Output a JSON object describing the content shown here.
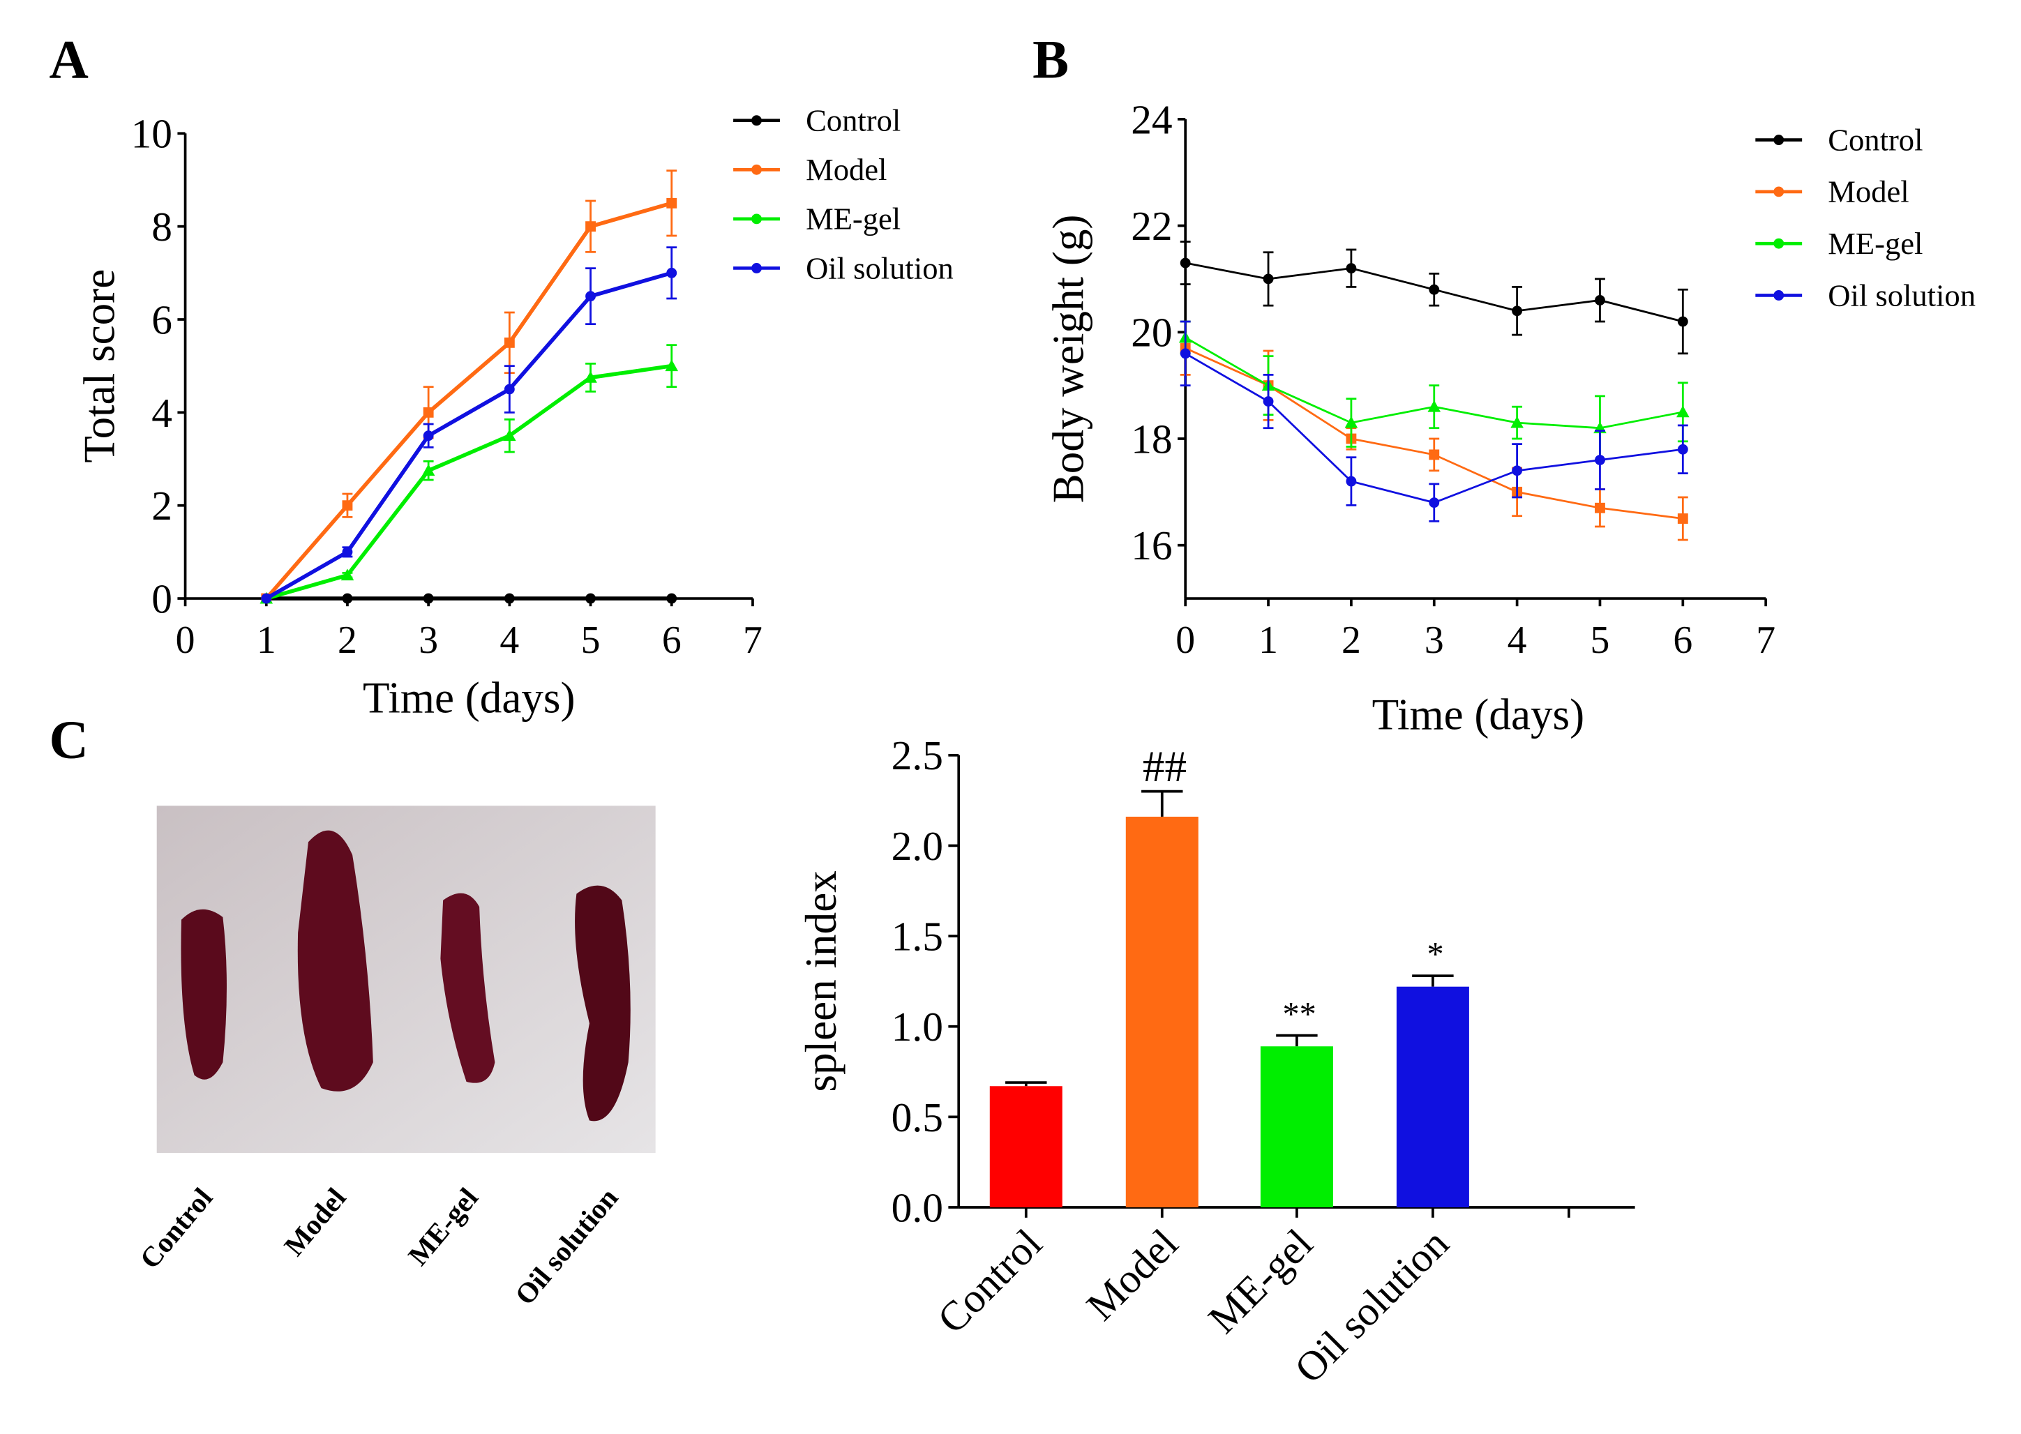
{
  "panel_labels": [
    "A",
    "B",
    "C"
  ],
  "colors": {
    "Control": "#000000",
    "Model": "#ff6a13",
    "ME-gel": "#00ee00",
    "Oil solution": "#1010e0",
    "ControlBar": "#ff0000"
  },
  "chart_data": [
    {
      "id": "A",
      "type": "line",
      "title": "",
      "xlabel": "Time (days)",
      "ylabel": "Total score",
      "xlim": [
        0,
        7
      ],
      "ylim": [
        0,
        10
      ],
      "xticks": [
        "0",
        "1",
        "2",
        "3",
        "4",
        "5",
        "6",
        "7"
      ],
      "yticks": [
        "0",
        "2",
        "4",
        "6",
        "8",
        "10"
      ],
      "legend_position": "top-right",
      "x": [
        1,
        2,
        3,
        4,
        5,
        6
      ],
      "series": [
        {
          "name": "Control",
          "values": [
            0,
            0,
            0,
            0,
            0,
            0
          ],
          "errors": [
            0,
            0,
            0,
            0,
            0,
            0
          ]
        },
        {
          "name": "Model",
          "values": [
            0,
            2,
            4,
            5.5,
            8,
            8.5
          ],
          "errors": [
            0,
            0.25,
            0.55,
            0.65,
            0.55,
            0.7
          ]
        },
        {
          "name": "ME-gel",
          "values": [
            0,
            0.5,
            2.75,
            3.5,
            4.75,
            5
          ],
          "errors": [
            0,
            0.05,
            0.2,
            0.35,
            0.3,
            0.45
          ]
        },
        {
          "name": "Oil solution",
          "values": [
            0,
            1,
            3.5,
            4.5,
            6.5,
            7
          ],
          "errors": [
            0,
            0.1,
            0.25,
            0.5,
            0.6,
            0.55
          ]
        }
      ]
    },
    {
      "id": "B",
      "type": "line",
      "title": "",
      "xlabel": "Time (days)",
      "ylabel": "Body weight (g)",
      "xlim": [
        0,
        7
      ],
      "ylim": [
        15,
        24
      ],
      "xticks": [
        "0",
        "1",
        "2",
        "3",
        "4",
        "5",
        "6",
        "7"
      ],
      "yticks": [
        "16",
        "18",
        "20",
        "22",
        "24"
      ],
      "legend_position": "top-right",
      "x": [
        0,
        1,
        2,
        3,
        4,
        5,
        6
      ],
      "series": [
        {
          "name": "Control",
          "values": [
            21.3,
            21.0,
            21.2,
            20.8,
            20.4,
            20.6,
            20.2
          ],
          "errors": [
            0.4,
            0.5,
            0.35,
            0.3,
            0.45,
            0.4,
            0.6
          ]
        },
        {
          "name": "Model",
          "values": [
            19.7,
            19.0,
            18.0,
            17.7,
            17.0,
            16.7,
            16.5
          ],
          "errors": [
            0.5,
            0.65,
            0.2,
            0.3,
            0.45,
            0.35,
            0.4
          ]
        },
        {
          "name": "ME-gel",
          "values": [
            19.9,
            19.0,
            18.3,
            18.6,
            18.3,
            18.2,
            18.5
          ],
          "errors": [
            0.3,
            0.55,
            0.45,
            0.4,
            0.3,
            0.6,
            0.55
          ]
        },
        {
          "name": "Oil solution",
          "values": [
            19.6,
            18.7,
            17.2,
            16.8,
            17.4,
            17.6,
            17.8
          ],
          "errors": [
            0.6,
            0.5,
            0.45,
            0.35,
            0.5,
            0.55,
            0.45
          ]
        }
      ]
    },
    {
      "id": "C",
      "type": "bar",
      "title": "",
      "xlabel": "",
      "ylabel": "spleen index",
      "ylim": [
        0,
        2.5
      ],
      "yticks": [
        "0.0",
        "0.5",
        "1.0",
        "1.5",
        "2.0",
        "2.5"
      ],
      "categories": [
        "Control",
        "Model",
        "ME-gel",
        "Oil solution"
      ],
      "values": [
        0.67,
        2.16,
        0.89,
        1.22
      ],
      "errors": [
        0.02,
        0.14,
        0.06,
        0.06
      ],
      "annotations": [
        "",
        "##",
        "**",
        "*"
      ]
    }
  ],
  "photo": {
    "labels": [
      "Control",
      "Model",
      "ME-gel",
      "Oil solution"
    ]
  }
}
